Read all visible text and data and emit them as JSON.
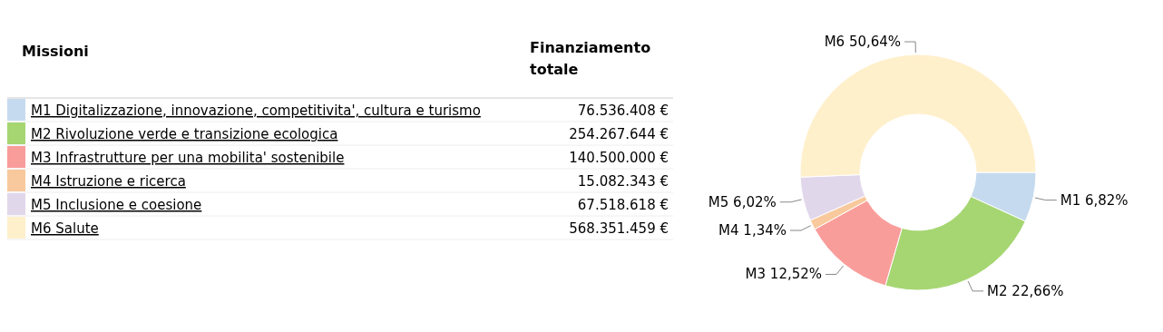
{
  "chart_data": {
    "type": "donut",
    "legend_title": "Missioni",
    "legend": "left",
    "categories": [
      "M1 Digitalizzazione, innovazione, competitivita', cultura e turismo",
      "M2 Rivoluzione verde e transizione ecologica",
      "M3 Infrastrutture per una mobilita' sostenibile",
      "M4 Istruzione e ricerca",
      "M5 Inclusione e coesione",
      "M6 Salute"
    ],
    "values": [
      76536408,
      254267644,
      140500000,
      15082343,
      67518618,
      568351459
    ],
    "value_labels": [
      "76.536.408 €",
      "254.267.644 €",
      "140.500.000 €",
      "15.082.343 €",
      "67.518.618 €",
      "568.351.459 €"
    ],
    "colors": [
      "#c5daee",
      "#a6d672",
      "#f99d9b",
      "#f8c99c",
      "#e1d7eb",
      "#fff0cc"
    ],
    "annotations": [
      "Finanziamento totale",
      {
        "text": "M1 6,82%",
        "x": "M1 Digitalizzazione, innovazione, competitivita', cultura e turismo"
      },
      {
        "text": "M2 22,66%",
        "x": "M2 Rivoluzione verde e transizione ecologica"
      },
      {
        "text": "M3 12,52%",
        "x": "M3 Infrastrutture per una mobilita' sostenibile"
      },
      {
        "text": "M4 1,34%",
        "x": "M4 Istruzione e ricerca"
      },
      {
        "text": "M5 6,02%",
        "x": "M5 Inclusione e coesione"
      },
      {
        "text": "M6 50,64%",
        "x": "M6 Salute"
      }
    ]
  }
}
